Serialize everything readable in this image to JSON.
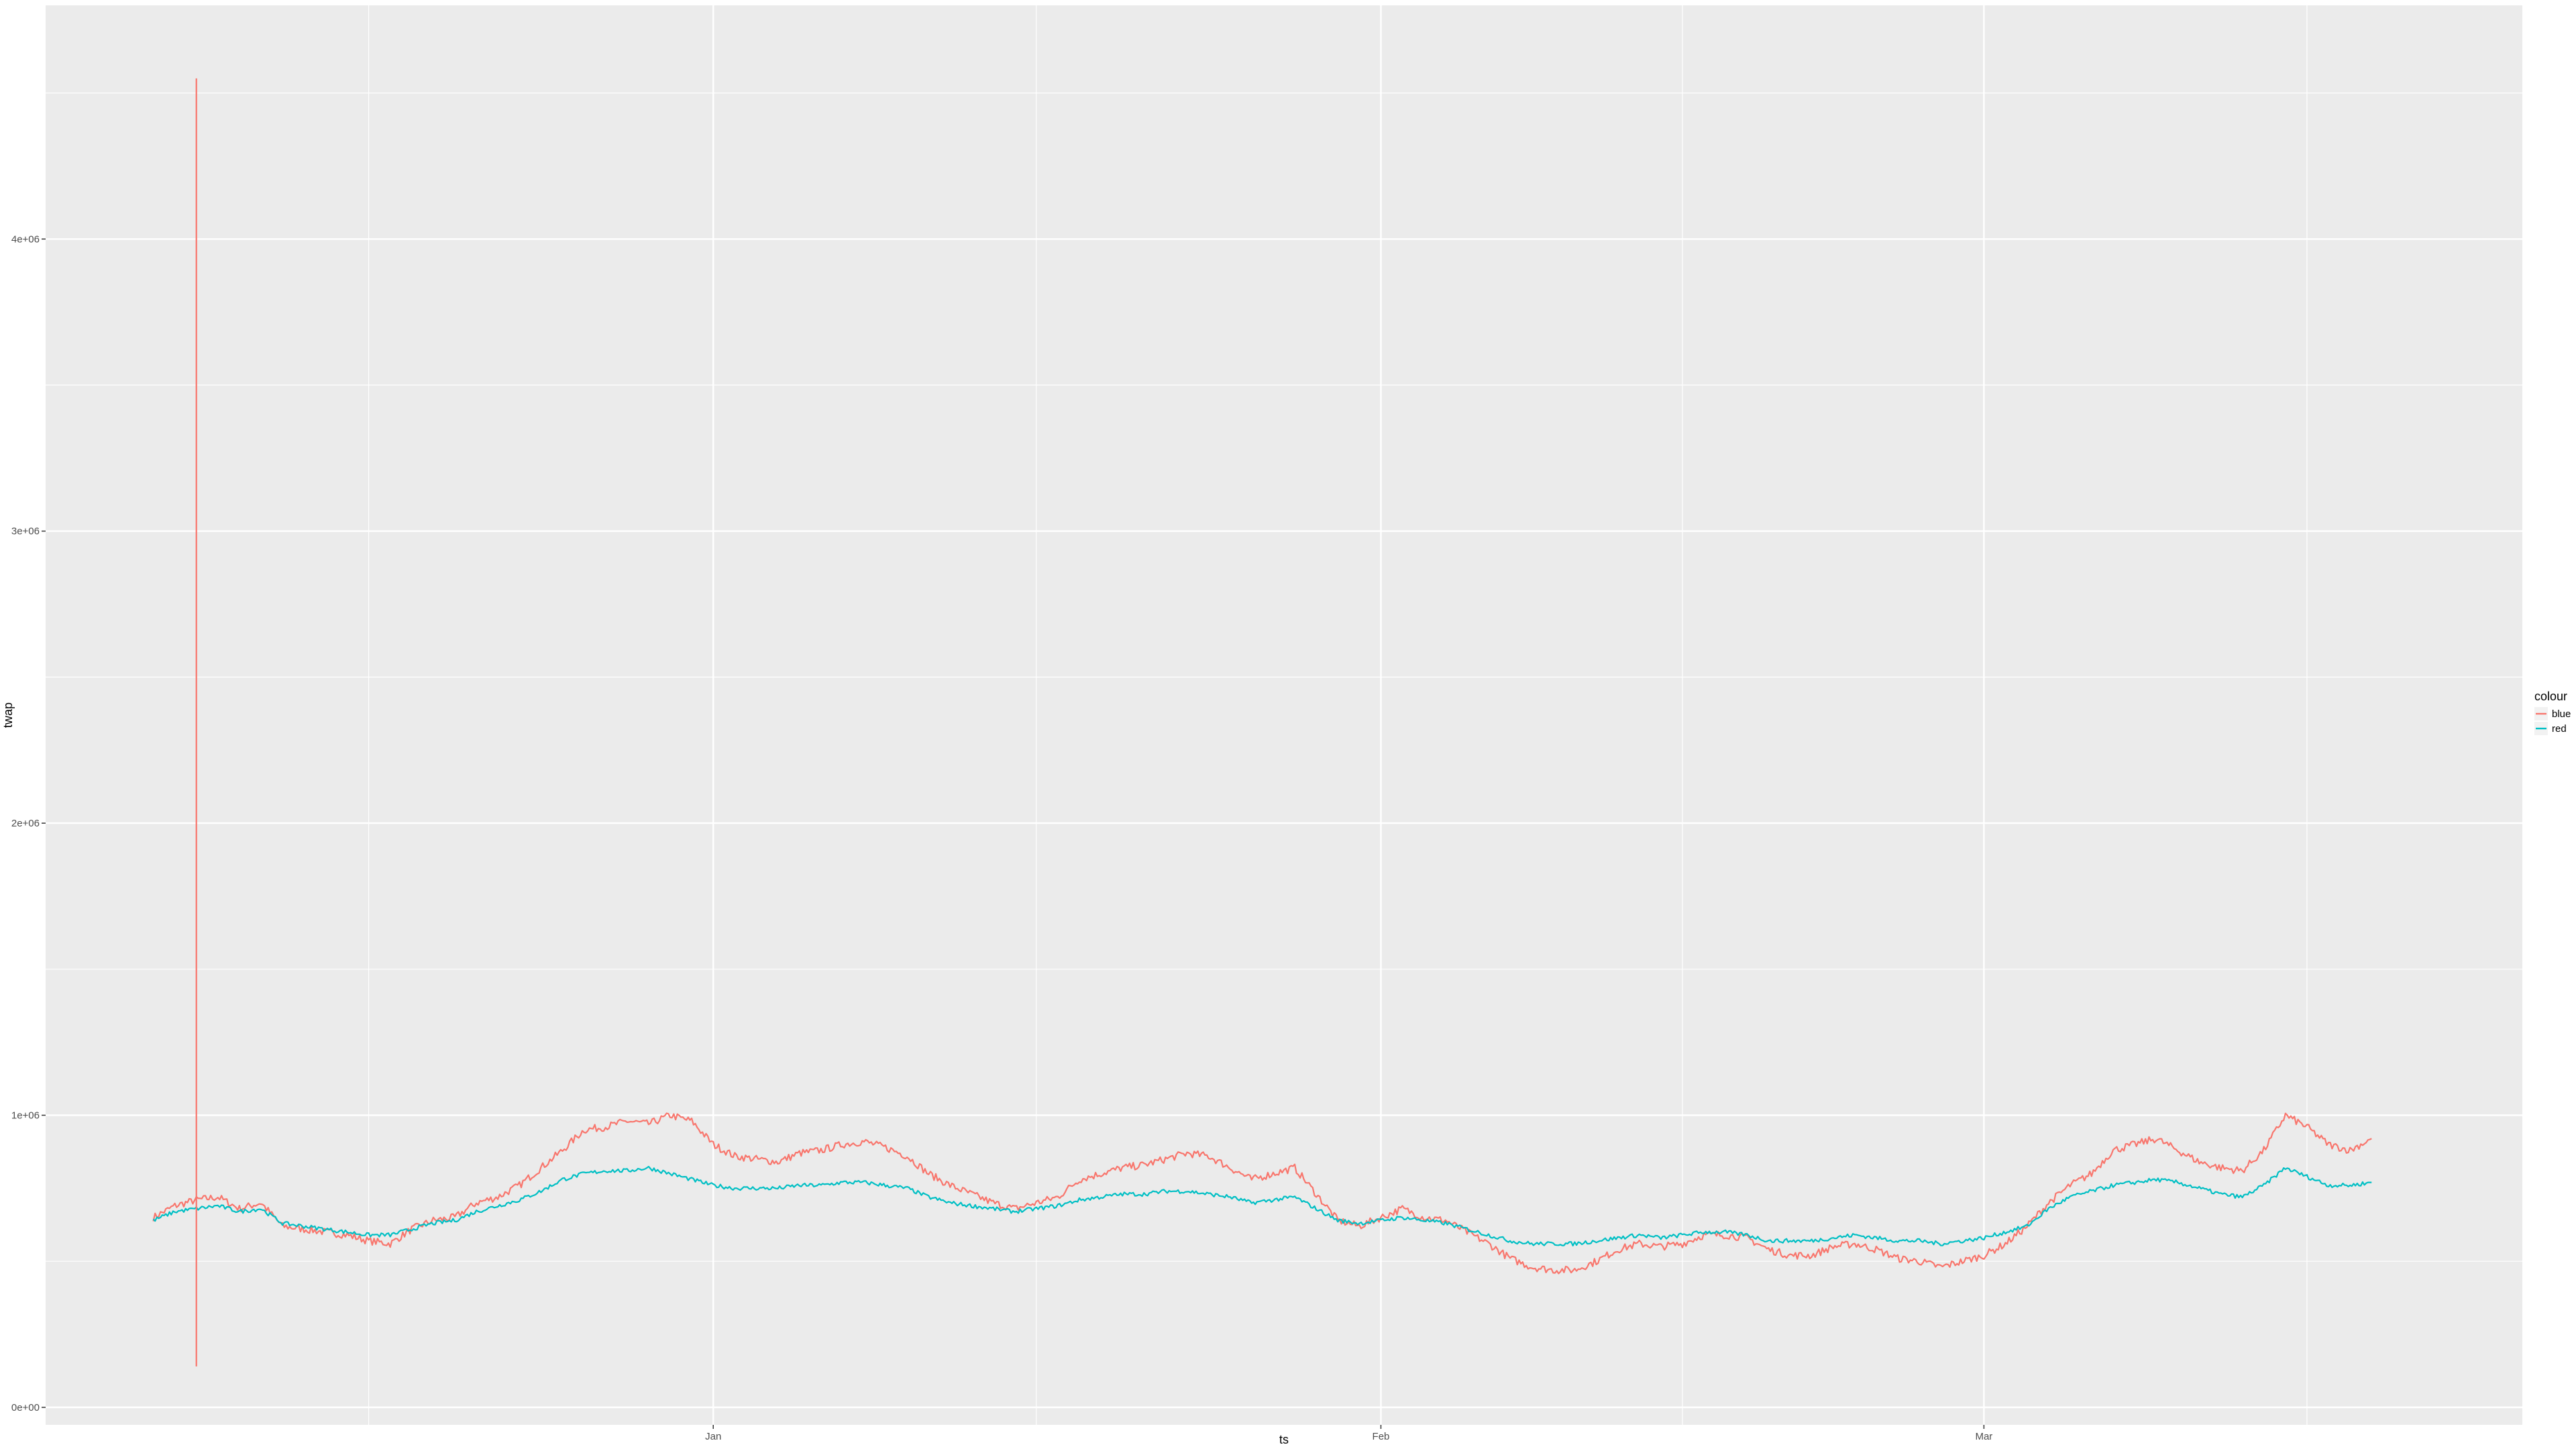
{
  "chart_data": {
    "type": "line",
    "title": "",
    "xlabel": "ts",
    "ylabel": "twap",
    "x_range": [
      "2021-12-01",
      "2022-03-26"
    ],
    "ylim": [
      -60000,
      4800000
    ],
    "x_ticks": [
      {
        "date": "2022-01-01",
        "label": "Jan"
      },
      {
        "date": "2022-02-01",
        "label": "Feb"
      },
      {
        "date": "2022-03-01",
        "label": "Mar"
      }
    ],
    "x_minor_ticks": [
      "2021-12-16",
      "2022-01-16",
      "2022-02-15",
      "2022-03-16"
    ],
    "y_ticks": [
      {
        "value": 0,
        "label": "0e+00"
      },
      {
        "value": 1000000,
        "label": "1e+06"
      },
      {
        "value": 2000000,
        "label": "2e+06"
      },
      {
        "value": 3000000,
        "label": "3e+06"
      },
      {
        "value": 4000000,
        "label": "4e+06"
      }
    ],
    "y_minor_ticks": [
      500000,
      1500000,
      2500000,
      3500000,
      4500000
    ],
    "grid": true,
    "legend": {
      "title": "colour",
      "position": "right"
    },
    "series": [
      {
        "name": "blue",
        "color": "#F8766D",
        "x": [
          "2021-12-06",
          "2021-12-07",
          "2021-12-08",
          "2021-12-09",
          "2021-12-10",
          "2021-12-11",
          "2021-12-12",
          "2021-12-13",
          "2021-12-14",
          "2021-12-15",
          "2021-12-16",
          "2021-12-17",
          "2021-12-18",
          "2021-12-19",
          "2021-12-20",
          "2021-12-21",
          "2021-12-22",
          "2021-12-23",
          "2021-12-24",
          "2021-12-25",
          "2021-12-26",
          "2021-12-27",
          "2021-12-28",
          "2021-12-29",
          "2021-12-30",
          "2021-12-31",
          "2022-01-01",
          "2022-01-02",
          "2022-01-03",
          "2022-01-04",
          "2022-01-05",
          "2022-01-06",
          "2022-01-07",
          "2022-01-08",
          "2022-01-09",
          "2022-01-10",
          "2022-01-11",
          "2022-01-12",
          "2022-01-13",
          "2022-01-14",
          "2022-01-15",
          "2022-01-16",
          "2022-01-17",
          "2022-01-18",
          "2022-01-19",
          "2022-01-20",
          "2022-01-21",
          "2022-01-22",
          "2022-01-23",
          "2022-01-24",
          "2022-01-25",
          "2022-01-26",
          "2022-01-27",
          "2022-01-28",
          "2022-01-29",
          "2022-01-30",
          "2022-01-31",
          "2022-02-01",
          "2022-02-02",
          "2022-02-03",
          "2022-02-04",
          "2022-02-05",
          "2022-02-06",
          "2022-02-07",
          "2022-02-08",
          "2022-02-09",
          "2022-02-10",
          "2022-02-11",
          "2022-02-12",
          "2022-02-13",
          "2022-02-14",
          "2022-02-15",
          "2022-02-16",
          "2022-02-17",
          "2022-02-18",
          "2022-02-19",
          "2022-02-20",
          "2022-02-21",
          "2022-02-22",
          "2022-02-23",
          "2022-02-24",
          "2022-02-25",
          "2022-02-26",
          "2022-02-27",
          "2022-02-28",
          "2022-03-01",
          "2022-03-02",
          "2022-03-03",
          "2022-03-04",
          "2022-03-05",
          "2022-03-06",
          "2022-03-07",
          "2022-03-08",
          "2022-03-09",
          "2022-03-10",
          "2022-03-11",
          "2022-03-12",
          "2022-03-13",
          "2022-03-14",
          "2022-03-15",
          "2022-03-16",
          "2022-03-17",
          "2022-03-18",
          "2022-03-19"
        ],
        "values": [
          650000,
          690000,
          710000,
          720000,
          680000,
          700000,
          620000,
          610000,
          600000,
          590000,
          570000,
          560000,
          610000,
          640000,
          650000,
          700000,
          720000,
          760000,
          820000,
          880000,
          950000,
          960000,
          980000,
          970000,
          1000000,
          980000,
          900000,
          860000,
          850000,
          840000,
          870000,
          880000,
          900000,
          910000,
          890000,
          860000,
          800000,
          760000,
          730000,
          700000,
          680000,
          700000,
          720000,
          780000,
          800000,
          820000,
          830000,
          850000,
          870000,
          860000,
          820000,
          780000,
          800000,
          820000,
          730000,
          640000,
          620000,
          650000,
          680000,
          650000,
          640000,
          600000,
          560000,
          510000,
          480000,
          470000,
          470000,
          500000,
          540000,
          560000,
          550000,
          560000,
          590000,
          590000,
          580000,
          540000,
          520000,
          520000,
          550000,
          560000,
          540000,
          510000,
          500000,
          480000,
          500000,
          520000,
          560000,
          620000,
          700000,
          760000,
          800000,
          880000,
          900000,
          920000,
          880000,
          840000,
          820000,
          810000,
          880000,
          1000000,
          960000,
          900000,
          880000,
          920000
        ]
      },
      {
        "name": "red",
        "color": "#00BFC4",
        "x": [
          "2021-12-06",
          "2021-12-07",
          "2021-12-08",
          "2021-12-09",
          "2021-12-10",
          "2021-12-11",
          "2021-12-12",
          "2021-12-13",
          "2021-12-14",
          "2021-12-15",
          "2021-12-16",
          "2021-12-17",
          "2021-12-18",
          "2021-12-19",
          "2021-12-20",
          "2021-12-21",
          "2021-12-22",
          "2021-12-23",
          "2021-12-24",
          "2021-12-25",
          "2021-12-26",
          "2021-12-27",
          "2021-12-28",
          "2021-12-29",
          "2021-12-30",
          "2021-12-31",
          "2022-01-01",
          "2022-01-02",
          "2022-01-03",
          "2022-01-04",
          "2022-01-05",
          "2022-01-06",
          "2022-01-07",
          "2022-01-08",
          "2022-01-09",
          "2022-01-10",
          "2022-01-11",
          "2022-01-12",
          "2022-01-13",
          "2022-01-14",
          "2022-01-15",
          "2022-01-16",
          "2022-01-17",
          "2022-01-18",
          "2022-01-19",
          "2022-01-20",
          "2022-01-21",
          "2022-01-22",
          "2022-01-23",
          "2022-01-24",
          "2022-01-25",
          "2022-01-26",
          "2022-01-27",
          "2022-01-28",
          "2022-01-29",
          "2022-01-30",
          "2022-01-31",
          "2022-02-01",
          "2022-02-02",
          "2022-02-03",
          "2022-02-04",
          "2022-02-05",
          "2022-02-06",
          "2022-02-07",
          "2022-02-08",
          "2022-02-09",
          "2022-02-10",
          "2022-02-11",
          "2022-02-12",
          "2022-02-13",
          "2022-02-14",
          "2022-02-15",
          "2022-02-16",
          "2022-02-17",
          "2022-02-18",
          "2022-02-19",
          "2022-02-20",
          "2022-02-21",
          "2022-02-22",
          "2022-02-23",
          "2022-02-24",
          "2022-02-25",
          "2022-02-26",
          "2022-02-27",
          "2022-02-28",
          "2022-03-01",
          "2022-03-02",
          "2022-03-03",
          "2022-03-04",
          "2022-03-05",
          "2022-03-06",
          "2022-03-07",
          "2022-03-08",
          "2022-03-09",
          "2022-03-10",
          "2022-03-11",
          "2022-03-12",
          "2022-03-13",
          "2022-03-14",
          "2022-03-15",
          "2022-03-16",
          "2022-03-17",
          "2022-03-18",
          "2022-03-19"
        ],
        "values": [
          640000,
          670000,
          680000,
          690000,
          670000,
          680000,
          630000,
          620000,
          610000,
          600000,
          590000,
          590000,
          610000,
          630000,
          640000,
          670000,
          690000,
          710000,
          740000,
          780000,
          800000,
          810000,
          810000,
          820000,
          800000,
          780000,
          760000,
          750000,
          750000,
          750000,
          760000,
          760000,
          770000,
          770000,
          760000,
          750000,
          720000,
          700000,
          690000,
          680000,
          670000,
          680000,
          690000,
          710000,
          720000,
          730000,
          730000,
          740000,
          740000,
          730000,
          720000,
          700000,
          710000,
          720000,
          680000,
          640000,
          630000,
          640000,
          650000,
          640000,
          630000,
          610000,
          590000,
          570000,
          560000,
          560000,
          560000,
          570000,
          580000,
          590000,
          580000,
          590000,
          600000,
          600000,
          590000,
          570000,
          570000,
          570000,
          580000,
          590000,
          580000,
          570000,
          570000,
          560000,
          570000,
          580000,
          600000,
          620000,
          680000,
          720000,
          740000,
          760000,
          770000,
          780000,
          770000,
          750000,
          730000,
          720000,
          760000,
          820000,
          790000,
          760000,
          760000,
          770000
        ]
      }
    ],
    "spike": {
      "series": "blue",
      "x": "2021-12-08",
      "max": 4550000,
      "min": 140000
    }
  }
}
